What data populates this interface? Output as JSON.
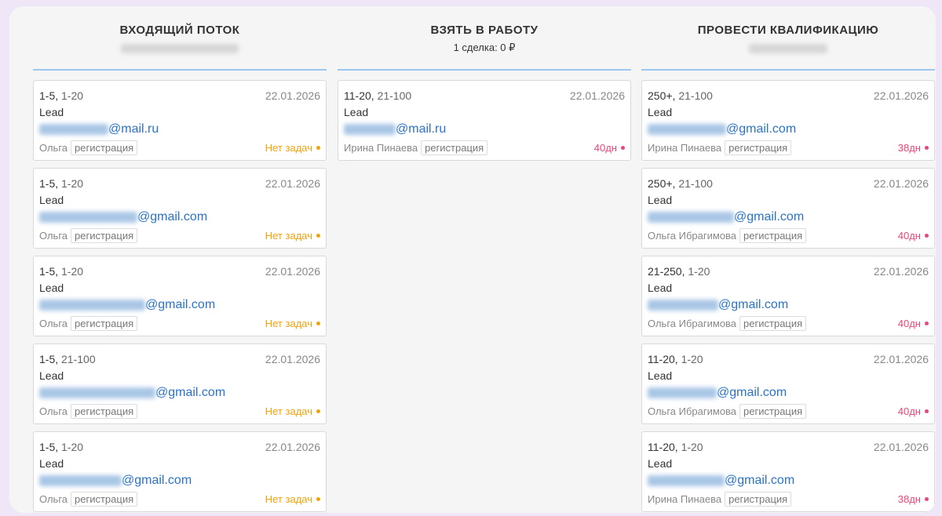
{
  "colors": {
    "orange": "#f0a30a",
    "pink": "#e8477b",
    "accent": "#9dc6f0"
  },
  "columns": [
    {
      "title": "ВХОДЯЩИЙ ПОТОК",
      "subtitle": "",
      "cards": [
        {
          "size_primary": "1-5",
          "size_secondary": "1-20",
          "date": "22.01.2026",
          "type": "Lead",
          "email_domain": "@mail.ru",
          "owner": "Ольга",
          "tag": "регистрация",
          "status": "Нет задач",
          "status_color": "orange"
        },
        {
          "size_primary": "1-5",
          "size_secondary": "1-20",
          "date": "22.01.2026",
          "type": "Lead",
          "email_domain": "@gmail.com",
          "owner": "Ольга",
          "tag": "регистрация",
          "status": "Нет задач",
          "status_color": "orange"
        },
        {
          "size_primary": "1-5",
          "size_secondary": "1-20",
          "date": "22.01.2026",
          "type": "Lead",
          "email_domain": "@gmail.com",
          "owner": "Ольга",
          "tag": "регистрация",
          "status": "Нет задач",
          "status_color": "orange"
        },
        {
          "size_primary": "1-5",
          "size_secondary": "21-100",
          "date": "22.01.2026",
          "type": "Lead",
          "email_domain": "@gmail.com",
          "owner": "Ольга",
          "tag": "регистрация",
          "status": "Нет задач",
          "status_color": "orange"
        },
        {
          "size_primary": "1-5",
          "size_secondary": "1-20",
          "date": "22.01.2026",
          "type": "Lead",
          "email_domain": "@gmail.com",
          "owner": "Ольга",
          "tag": "регистрация",
          "status": "Нет задач",
          "status_color": "orange"
        }
      ]
    },
    {
      "title": "ВЗЯТЬ В РАБОТУ",
      "subtitle": "1 сделка: 0 ₽",
      "cards": [
        {
          "size_primary": "11-20",
          "size_secondary": "21-100",
          "date": "22.01.2026",
          "type": "Lead",
          "email_domain": "@mail.ru",
          "owner": "Ирина Пинаева",
          "tag": "регистрация",
          "status": "40дн",
          "status_color": "pink"
        }
      ]
    },
    {
      "title": "ПРОВЕСТИ КВАЛИФИКАЦИЮ",
      "subtitle": "",
      "cards": [
        {
          "size_primary": "250+",
          "size_secondary": "21-100",
          "date": "22.01.2026",
          "type": "Lead",
          "email_domain": "@gmail.com",
          "owner": "Ирина Пинаева",
          "tag": "регистрация",
          "status": "38дн",
          "status_color": "pink"
        },
        {
          "size_primary": "250+",
          "size_secondary": "21-100",
          "date": "22.01.2026",
          "type": "Lead",
          "email_domain": "@gmail.com",
          "owner": "Ольга Ибрагимова",
          "tag": "регистрация",
          "status": "40дн",
          "status_color": "pink"
        },
        {
          "size_primary": "21-250",
          "size_secondary": "1-20",
          "date": "22.01.2026",
          "type": "Lead",
          "email_domain": "@gmail.com",
          "owner": "Ольга Ибрагимова",
          "tag": "регистрация",
          "status": "40дн",
          "status_color": "pink"
        },
        {
          "size_primary": "11-20",
          "size_secondary": "1-20",
          "date": "22.01.2026",
          "type": "Lead",
          "email_domain": "@gmail.com",
          "owner": "Ольга Ибрагимова",
          "tag": "регистрация",
          "status": "40дн",
          "status_color": "pink"
        },
        {
          "size_primary": "11-20",
          "size_secondary": "1-20",
          "date": "22.01.2026",
          "type": "Lead",
          "email_domain": "@gmail.com",
          "owner": "Ирина Пинаева",
          "tag": "регистрация",
          "status": "38дн",
          "status_color": "pink"
        }
      ]
    }
  ]
}
